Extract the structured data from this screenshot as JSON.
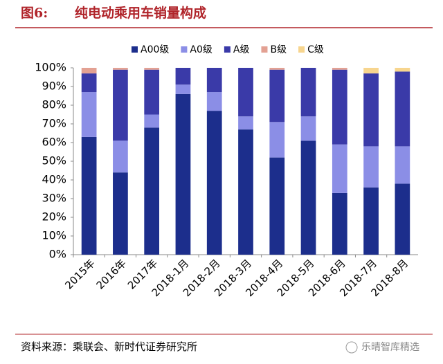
{
  "header": {
    "label": "图6:",
    "title": "纯电动乘用车销量构成"
  },
  "chart_data": {
    "type": "stacked_bar",
    "categories": [
      "2015年",
      "2016年",
      "2017年",
      "2018-1月",
      "2018-2月",
      "2018-3月",
      "2018-4月",
      "2018-5月",
      "2018-6月",
      "2018-7月",
      "2018-8月"
    ],
    "series": [
      {
        "name": "A00级",
        "color": "#1c2e8c",
        "values": [
          63,
          44,
          68,
          86,
          77,
          67,
          52,
          61,
          33,
          36,
          38
        ]
      },
      {
        "name": "A0级",
        "color": "#8b8ee6",
        "values": [
          24,
          17,
          7,
          5,
          10,
          7,
          19,
          13,
          26,
          22,
          20
        ]
      },
      {
        "name": "A级",
        "color": "#3a3aa8",
        "values": [
          10,
          38,
          24,
          9,
          13,
          26,
          28,
          26,
          40,
          39,
          40
        ]
      },
      {
        "name": "B级",
        "color": "#e3a193",
        "values": [
          3,
          1,
          1,
          0,
          0,
          0,
          1,
          0,
          1,
          0,
          0
        ]
      },
      {
        "name": "C级",
        "color": "#f7d58e",
        "values": [
          0,
          0,
          0,
          0,
          0,
          0,
          0,
          0,
          0,
          3,
          2
        ]
      }
    ],
    "ylim": [
      0,
      100
    ],
    "yticks": [
      {
        "value": 0,
        "label": "0%"
      },
      {
        "value": 10,
        "label": "10%"
      },
      {
        "value": 20,
        "label": "20%"
      },
      {
        "value": 30,
        "label": "30%"
      },
      {
        "value": 40,
        "label": "40%"
      },
      {
        "value": 50,
        "label": "50%"
      },
      {
        "value": 60,
        "label": "60%"
      },
      {
        "value": 70,
        "label": "70%"
      },
      {
        "value": 80,
        "label": "80%"
      },
      {
        "value": 90,
        "label": "90%"
      },
      {
        "value": 100,
        "label": "100%"
      }
    ]
  },
  "footer": {
    "source": "资料来源：乘联会、新时代证券研究所",
    "watermark": "乐晴智库精选"
  }
}
